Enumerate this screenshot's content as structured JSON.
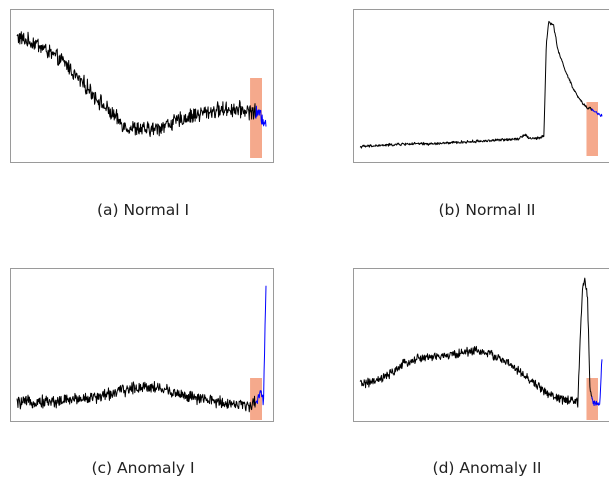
{
  "figure": {
    "subplots": [
      {
        "caption": "(a) Normal I"
      },
      {
        "caption": "(b) Normal II"
      },
      {
        "caption": "(c) Anomaly I"
      },
      {
        "caption": "(d) Anomaly II"
      }
    ]
  },
  "colors": {
    "history": "#000000",
    "recent": "#0000ff",
    "highlight": "#f4a080",
    "frame": "#9a9a9a"
  },
  "chart_data": [
    {
      "type": "line",
      "title": "",
      "xlabel": "",
      "ylabel": "",
      "grid": false,
      "xlim": [
        0,
        100
      ],
      "ylim": [
        0,
        100
      ],
      "noise": 4.5,
      "highlight_window": [
        94,
        100
      ],
      "recent_from": 96,
      "series": [
        {
          "x": [
            0,
            4,
            8,
            12,
            16,
            20,
            24,
            28,
            32,
            36,
            40,
            44,
            48,
            52,
            56,
            60,
            64,
            68,
            72,
            76,
            80,
            84,
            88,
            92,
            96,
            98,
            100
          ],
          "y": [
            85,
            82,
            80,
            75,
            70,
            65,
            56,
            49,
            41,
            33,
            26,
            20,
            19,
            18,
            19,
            22,
            24,
            27,
            29,
            31,
            32,
            33,
            33,
            32,
            31,
            28,
            24
          ]
        }
      ]
    },
    {
      "type": "line",
      "title": "",
      "xlabel": "",
      "ylabel": "",
      "grid": false,
      "xlim": [
        0,
        100
      ],
      "ylim": [
        0,
        100
      ],
      "noise": 0.8,
      "highlight_window": [
        94,
        100
      ],
      "recent_from": 96,
      "series": [
        {
          "x": [
            0,
            10,
            20,
            30,
            40,
            50,
            60,
            66,
            68,
            70,
            74,
            76,
            77,
            78,
            80,
            82,
            84,
            86,
            88,
            90,
            92,
            94,
            96,
            98,
            100
          ],
          "y": [
            6,
            7,
            8,
            8,
            9,
            10,
            11,
            12,
            15,
            12,
            12,
            14,
            80,
            96,
            93,
            74,
            65,
            56,
            48,
            42,
            37,
            34,
            33,
            30,
            28
          ]
        }
      ]
    },
    {
      "type": "line",
      "title": "",
      "xlabel": "",
      "ylabel": "",
      "grid": false,
      "xlim": [
        0,
        100
      ],
      "ylim": [
        0,
        100
      ],
      "noise": 3.5,
      "highlight_window": [
        94,
        100
      ],
      "recent_from": 96,
      "series": [
        {
          "x": [
            0,
            8,
            16,
            24,
            32,
            40,
            48,
            52,
            56,
            64,
            72,
            80,
            88,
            92,
            94,
            96,
            97,
            98,
            99,
            100
          ],
          "y": [
            8,
            9,
            9,
            11,
            12,
            16,
            19,
            20,
            19,
            15,
            11,
            9,
            7,
            6,
            7,
            8,
            14,
            17,
            8,
            95
          ]
        }
      ]
    },
    {
      "type": "line",
      "title": "",
      "xlabel": "",
      "ylabel": "",
      "grid": false,
      "xlim": [
        0,
        100
      ],
      "ylim": [
        0,
        100
      ],
      "noise": 2.5,
      "highlight_window": [
        94,
        100
      ],
      "recent_from": 96,
      "series": [
        {
          "x": [
            0,
            6,
            12,
            18,
            24,
            30,
            36,
            42,
            48,
            54,
            60,
            66,
            72,
            80,
            88,
            90,
            91,
            92,
            93,
            94,
            95,
            96,
            97,
            98,
            99,
            100
          ],
          "y": [
            22,
            23,
            28,
            36,
            40,
            41,
            42,
            44,
            46,
            43,
            38,
            30,
            22,
            12,
            9,
            8,
            55,
            92,
            95,
            85,
            20,
            10,
            7,
            8,
            7,
            40
          ]
        }
      ]
    }
  ]
}
